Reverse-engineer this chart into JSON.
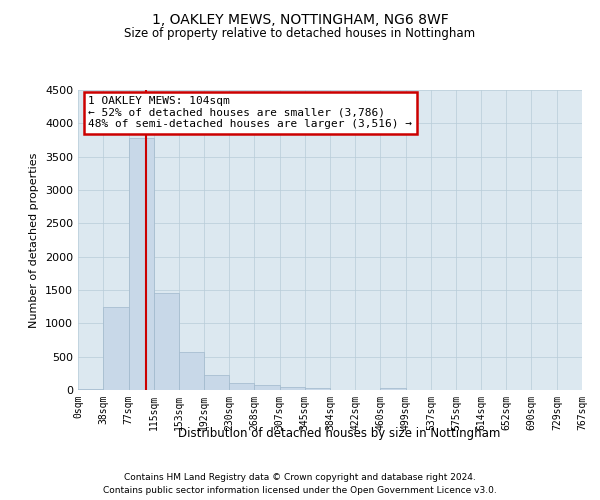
{
  "title1": "1, OAKLEY MEWS, NOTTINGHAM, NG6 8WF",
  "title2": "Size of property relative to detached houses in Nottingham",
  "xlabel": "Distribution of detached houses by size in Nottingham",
  "ylabel": "Number of detached properties",
  "footnote1": "Contains HM Land Registry data © Crown copyright and database right 2024.",
  "footnote2": "Contains public sector information licensed under the Open Government Licence v3.0.",
  "annotation_line1": "1 OAKLEY MEWS: 104sqm",
  "annotation_line2": "← 52% of detached houses are smaller (3,786)",
  "annotation_line3": "48% of semi-detached houses are larger (3,516) →",
  "property_size": 104,
  "bin_edges": [
    0,
    38,
    77,
    115,
    153,
    192,
    230,
    268,
    307,
    345,
    384,
    422,
    460,
    499,
    537,
    575,
    614,
    652,
    690,
    729,
    767
  ],
  "bar_heights": [
    20,
    1250,
    3786,
    1450,
    575,
    225,
    110,
    80,
    50,
    30,
    5,
    0,
    30,
    0,
    0,
    0,
    0,
    0,
    0,
    0
  ],
  "bar_color": "#c8d8e8",
  "bar_edgecolor": "#a0b8cc",
  "vline_color": "#cc0000",
  "vline_x": 104,
  "ylim": [
    0,
    4500
  ],
  "yticks": [
    0,
    500,
    1000,
    1500,
    2000,
    2500,
    3000,
    3500,
    4000,
    4500
  ],
  "bg_color": "#ffffff",
  "axes_bg_color": "#dce8f0",
  "grid_color": "#b8ccd8",
  "annotation_box_color": "#cc0000"
}
